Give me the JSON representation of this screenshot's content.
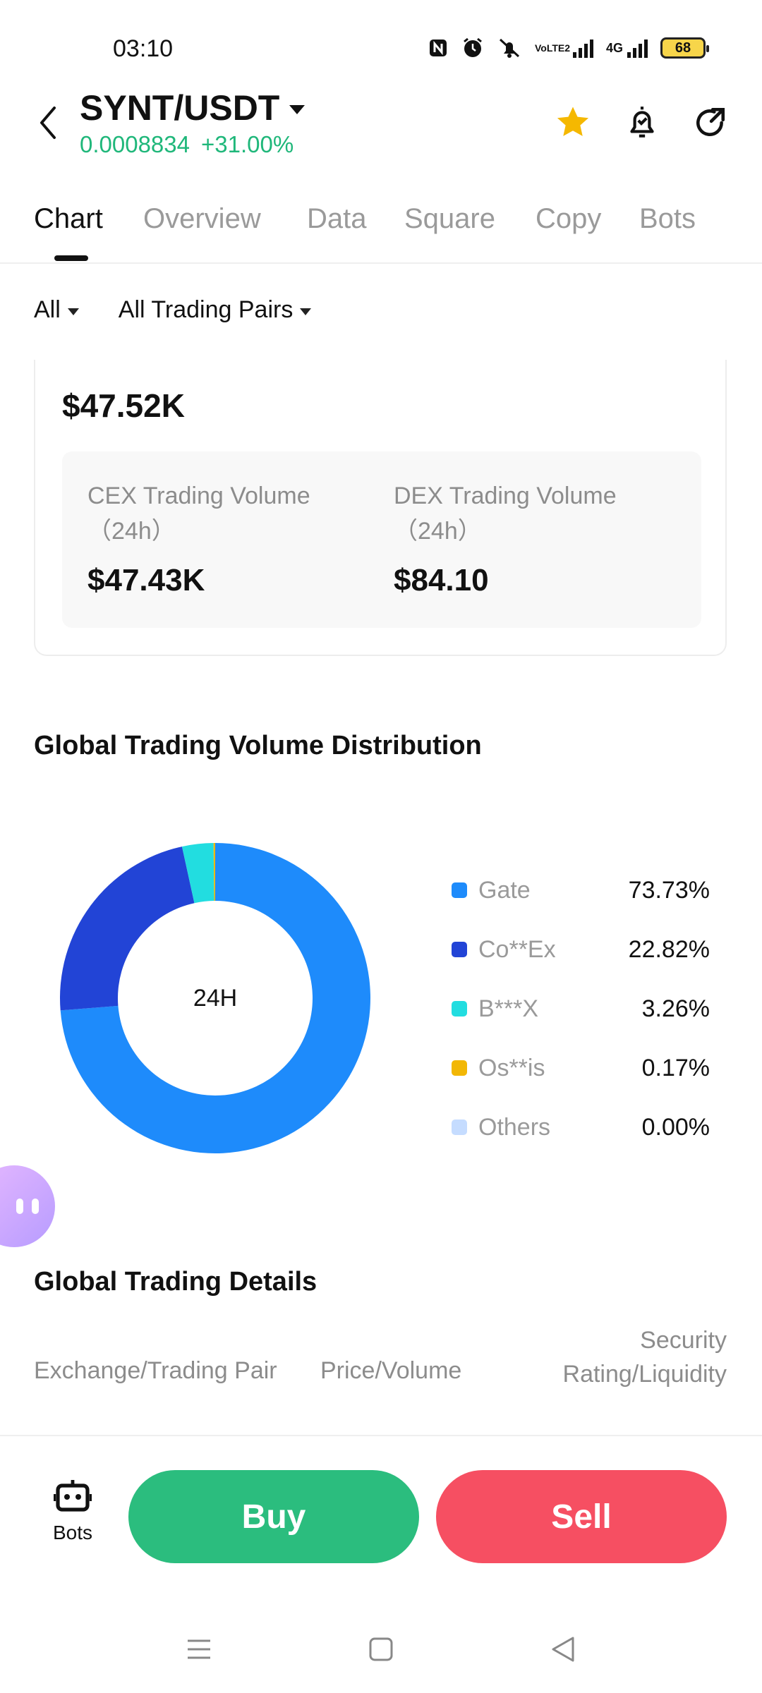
{
  "status_bar": {
    "time": "03:10",
    "battery": "68",
    "network": "4G",
    "volte": "VoLTE2"
  },
  "header": {
    "pair": "SYNT/USDT",
    "price": "0.0008834",
    "change": "+31.00%"
  },
  "tabs": [
    "Chart",
    "Overview",
    "Data",
    "Square",
    "Copy",
    "Bots"
  ],
  "filters": {
    "scope": "All",
    "pairs": "All Trading Pairs"
  },
  "summary": {
    "total_volume": "$47.52K",
    "cex_label": "CEX Trading Volume",
    "cex_period": "（24h）",
    "cex_value": "$47.43K",
    "dex_label": "DEX Trading Volume",
    "dex_period": "（24h）",
    "dex_value": "$84.10"
  },
  "distribution": {
    "title": "Global Trading Volume Distribution",
    "center_label": "24H"
  },
  "chart_data": {
    "type": "pie",
    "donut": true,
    "center_label": "24H",
    "labels": [
      "Gate",
      "Co**Ex",
      "B***X",
      "Os**is",
      "Others"
    ],
    "values": [
      73.73,
      22.82,
      3.26,
      0.17,
      0.0
    ],
    "display_values": [
      "73.73%",
      "22.82%",
      "3.26%",
      "0.17%",
      "0.00%"
    ],
    "colors": [
      "#1e8bfb",
      "#2244d6",
      "#22dde0",
      "#f2b705",
      "#c5dcff"
    ],
    "legend_position": "right"
  },
  "details": {
    "title": "Global Trading Details",
    "col_exchange": "Exchange/Trading Pair",
    "col_price": "Price/Volume",
    "col_security_1": "Security",
    "col_security_2": "Rating/Liquidity"
  },
  "actions": {
    "bots_label": "Bots",
    "buy_label": "Buy",
    "sell_label": "Sell"
  },
  "colors": {
    "positive": "#1fb77a",
    "buy": "#2bbd7e",
    "sell": "#f64f62",
    "star": "#f5b800"
  }
}
